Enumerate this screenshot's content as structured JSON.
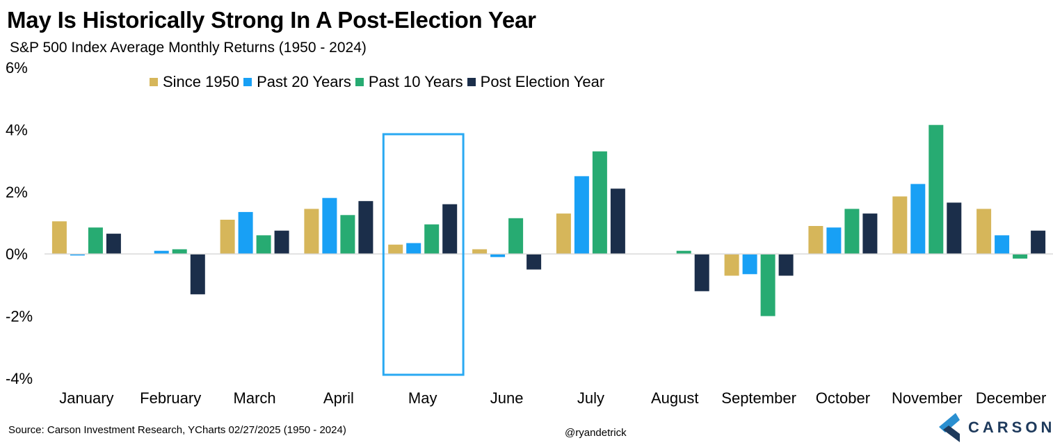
{
  "header": {
    "title": "May Is Historically Strong In A Post-Election Year",
    "subtitle": "S&P 500 Index Average Monthly Returns (1950 - 2024)"
  },
  "footer": {
    "source": "Source: Carson Investment Research, YCharts 02/27/2025 (1950 - 2024)",
    "handle": "@ryandetrick",
    "brand": "CARSON"
  },
  "colors": {
    "since_1950": "#d6b65a",
    "past_20": "#18a0f5",
    "past_10": "#27ab72",
    "post_election": "#1b2e4a",
    "highlight": "#29a9f2"
  },
  "chart_data": {
    "type": "bar",
    "categories": [
      "January",
      "February",
      "March",
      "April",
      "May",
      "June",
      "July",
      "August",
      "September",
      "October",
      "November",
      "December"
    ],
    "series": [
      {
        "name": "Since 1950",
        "values": [
          1.05,
          0.0,
          1.1,
          1.45,
          0.3,
          0.15,
          1.3,
          0.0,
          -0.7,
          0.9,
          1.85,
          1.45
        ]
      },
      {
        "name": "Past 20 Years",
        "values": [
          -0.05,
          0.1,
          1.35,
          1.8,
          0.35,
          -0.1,
          2.5,
          0.0,
          -0.65,
          0.85,
          2.25,
          0.6
        ]
      },
      {
        "name": "Past 10 Years",
        "values": [
          0.85,
          0.15,
          0.6,
          1.25,
          0.95,
          1.15,
          3.3,
          0.1,
          -2.0,
          1.45,
          4.15,
          -0.15
        ]
      },
      {
        "name": "Post Election Year",
        "values": [
          0.65,
          -1.3,
          0.75,
          1.7,
          1.6,
          -0.5,
          2.1,
          -1.2,
          -0.7,
          1.3,
          1.65,
          0.75
        ]
      }
    ],
    "y_ticks": [
      "6%",
      "4%",
      "2%",
      "0%",
      "-2%",
      "-4%"
    ],
    "ylim": [
      -4,
      6
    ],
    "grid": false,
    "legend": "top-left",
    "highlight_category": "May"
  }
}
